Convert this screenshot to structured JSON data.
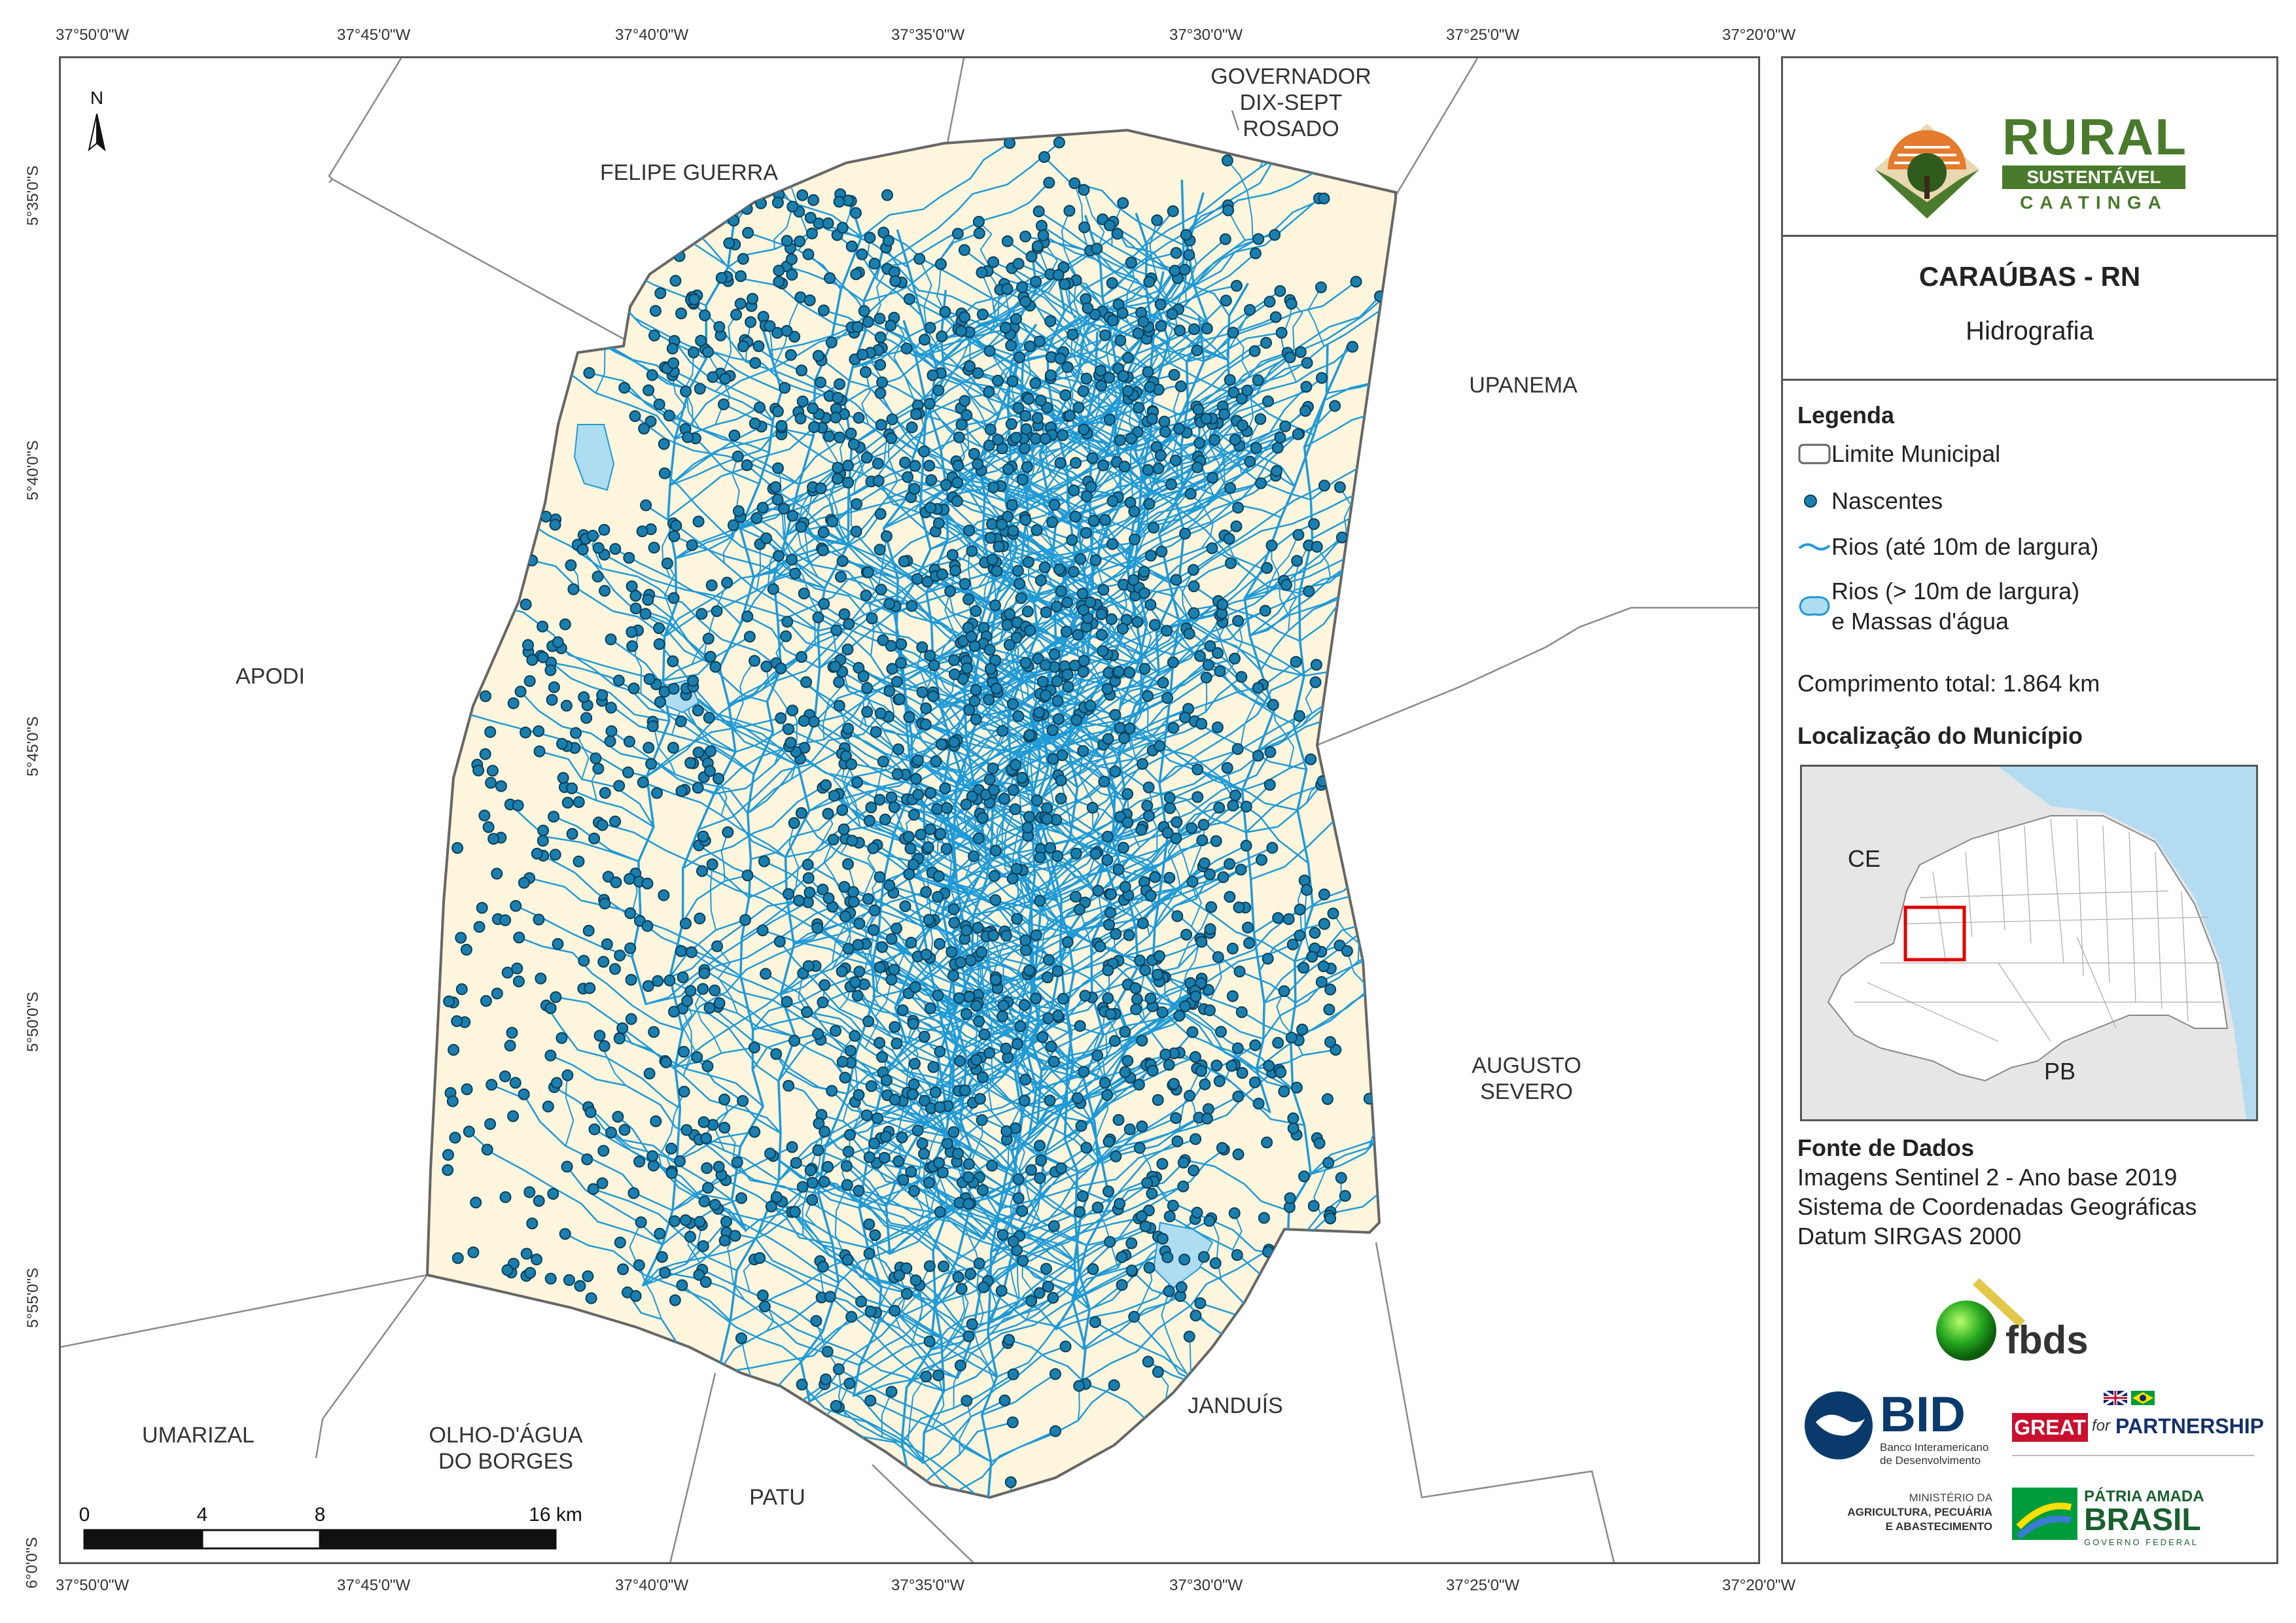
{
  "map": {
    "title": "CARAÚBAS - RN",
    "subtitle": "Hidrografia",
    "north_label": "N",
    "top_lon_labels": [
      "37°50'0\"W",
      "37°45'0\"W",
      "37°40'0\"W",
      "37°35'0\"W",
      "37°30'0\"W",
      "37°25'0\"W",
      "37°20'0\"W"
    ],
    "bottom_lon_labels": [
      "37°50'0\"W",
      "37°45'0\"W",
      "37°40'0\"W",
      "37°35'0\"W",
      "37°30'0\"W",
      "37°25'0\"W",
      "37°20'0\"W"
    ],
    "lat_labels": [
      "5°35'0\"S",
      "5°40'0\"S",
      "5°45'0\"S",
      "5°50'0\"S",
      "5°55'0\"S",
      "6°0'0\"S"
    ],
    "neighbors": {
      "governador": "GOVERNADOR\nDIX-SEPT\nROSADO",
      "felipe_guerra": "FELIPE GUERRA",
      "upanema": "UPANEMA",
      "apodi": "APODI",
      "augusto_severo": "AUGUSTO\nSEVERO",
      "umarizal": "UMARIZAL",
      "olho_dagua": "OLHO-D'ÁGUA\nDO BORGES",
      "patu": "PATU",
      "janduis": "JANDUÍS"
    },
    "scale_labels": [
      "0",
      "4",
      "8",
      "16 km"
    ]
  },
  "logo": {
    "rural": "RURAL",
    "sustentavel": "SUSTENTÁVEL",
    "caatinga": "CAATINGA"
  },
  "legend": {
    "heading": "Legenda",
    "items": [
      {
        "label": "Limite Municipal"
      },
      {
        "label": "Nascentes"
      },
      {
        "label": "Rios (até 10m de largura)"
      },
      {
        "label": "Rios (> 10m de largura)",
        "label2": "e Massas d'água"
      }
    ],
    "total_length": "Comprimento total:  1.864 km"
  },
  "location": {
    "heading": "Localização do Município",
    "ce": "CE",
    "pb": "PB"
  },
  "sources": {
    "heading": "Fonte de Dados",
    "lines": [
      "Imagens Sentinel 2 - Ano base 2019",
      "Sistema de Coordenadas Geográficas",
      "Datum SIRGAS 2000"
    ]
  },
  "logos": {
    "fbds": "fbds",
    "bid": "BID",
    "bid_sub1": "Banco Interamericano",
    "bid_sub2": "de Desenvolvimento",
    "great": "GREAT",
    "for": "for",
    "partnership": "PARTNERSHIP",
    "ministerio1": "MINISTÉRIO DA",
    "ministerio2": "AGRICULTURA, PECUÁRIA",
    "ministerio3": "E ABASTECIMENTO",
    "patria": "PÁTRIA AMADA",
    "brasil": "BRASIL",
    "governo": "GOVERNO FEDERAL"
  },
  "colors": {
    "municipality_fill": "#fdf5dc",
    "river": "#1f9ad6",
    "spring": "#1a7fae",
    "spring_stroke": "#0b3f5a",
    "water_body": "#aedcf0",
    "boundary": "#666666",
    "rn_fill": "#ffffff",
    "ocean": "#b3dcf0",
    "outside": "#e6e6e6",
    "highlight": "#e00000",
    "logo_green": "#4a7a2c",
    "logo_orange": "#e57b2c"
  }
}
